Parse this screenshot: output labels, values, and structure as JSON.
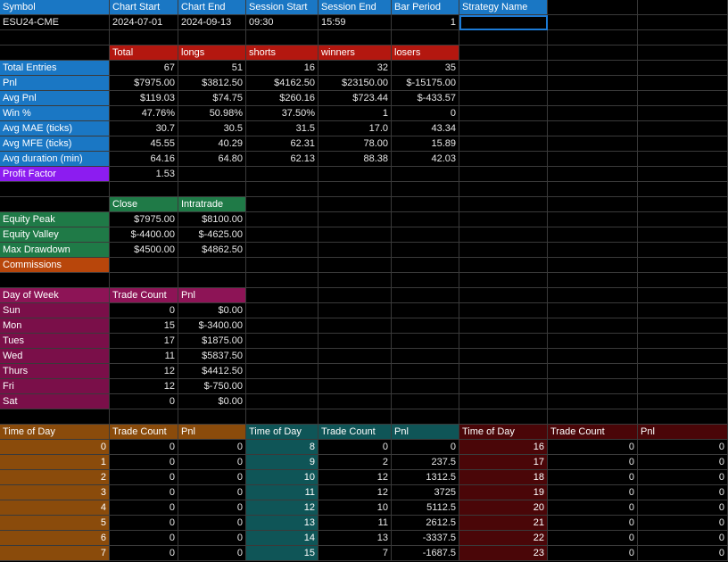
{
  "colors": {
    "blue": "#1a77c4",
    "red": "#b3170f",
    "green": "#1f7a47",
    "purple": "#8c1cf0",
    "orange_commissions": "#b8460b",
    "magenta": "#8d1456",
    "dow_label": "#7a0f49",
    "tod_orange": "#8a4b0b",
    "tod_teal": "#0f5557",
    "tod_maroon": "#4a0608",
    "grid_line": "#3a3a3a"
  },
  "header": {
    "labels": [
      "Symbol",
      "Chart Start",
      "Chart End",
      "Session Start",
      "Session End",
      "Bar Period",
      "Strategy Name"
    ],
    "values": [
      "ESU24-CME",
      "2024-07-01",
      "2024-09-13",
      "09:30",
      "15:59",
      "1",
      ""
    ]
  },
  "stats": {
    "columns": [
      "Total",
      "longs",
      "shorts",
      "winners",
      "losers"
    ],
    "rows": [
      {
        "label": "Total Entries",
        "values": [
          "67",
          "51",
          "16",
          "32",
          "35"
        ]
      },
      {
        "label": "Pnl",
        "values": [
          "$7975.00",
          "$3812.50",
          "$4162.50",
          "$23150.00",
          "$-15175.00"
        ]
      },
      {
        "label": "Avg Pnl",
        "values": [
          "$119.03",
          "$74.75",
          "$260.16",
          "$723.44",
          "$-433.57"
        ]
      },
      {
        "label": "Win %",
        "values": [
          "47.76%",
          "50.98%",
          "37.50%",
          "1",
          "0"
        ]
      },
      {
        "label": "Avg MAE (ticks)",
        "values": [
          "30.7",
          "30.5",
          "31.5",
          "17.0",
          "43.34"
        ]
      },
      {
        "label": "Avg MFE (ticks)",
        "values": [
          "45.55",
          "40.29",
          "62.31",
          "78.00",
          "15.89"
        ]
      },
      {
        "label": "Avg duration (min)",
        "values": [
          "64.16",
          "64.80",
          "62.13",
          "88.38",
          "42.03"
        ]
      }
    ],
    "profit_factor": {
      "label": "Profit Factor",
      "value": "1.53"
    }
  },
  "equity": {
    "columns": [
      "Close",
      "Intratrade"
    ],
    "rows": [
      {
        "label": "Equity Peak",
        "values": [
          "$7975.00",
          "$8100.00"
        ]
      },
      {
        "label": "Equity Valley",
        "values": [
          "$-4400.00",
          "$-4625.00"
        ]
      },
      {
        "label": "Max Drawdown",
        "values": [
          "$4500.00",
          "$4862.50"
        ]
      }
    ],
    "commissions_label": "Commissions"
  },
  "dow": {
    "header": [
      "Day of Week",
      "Trade Count",
      "Pnl"
    ],
    "rows": [
      {
        "day": "Sun",
        "count": "0",
        "pnl": "$0.00"
      },
      {
        "day": "Mon",
        "count": "15",
        "pnl": "$-3400.00"
      },
      {
        "day": "Tues",
        "count": "17",
        "pnl": "$1875.00"
      },
      {
        "day": "Wed",
        "count": "11",
        "pnl": "$5837.50"
      },
      {
        "day": "Thurs",
        "count": "12",
        "pnl": "$4412.50"
      },
      {
        "day": "Fri",
        "count": "12",
        "pnl": "$-750.00"
      },
      {
        "day": "Sat",
        "count": "0",
        "pnl": "$0.00"
      }
    ]
  },
  "tod": {
    "header": [
      "Time of Day",
      "Trade Count",
      "Pnl"
    ],
    "blocks": [
      {
        "rows": [
          [
            "0",
            "0",
            "0"
          ],
          [
            "1",
            "0",
            "0"
          ],
          [
            "2",
            "0",
            "0"
          ],
          [
            "3",
            "0",
            "0"
          ],
          [
            "4",
            "0",
            "0"
          ],
          [
            "5",
            "0",
            "0"
          ],
          [
            "6",
            "0",
            "0"
          ],
          [
            "7",
            "0",
            "0"
          ]
        ]
      },
      {
        "rows": [
          [
            "8",
            "0",
            "0"
          ],
          [
            "9",
            "2",
            "237.5"
          ],
          [
            "10",
            "12",
            "1312.5"
          ],
          [
            "11",
            "12",
            "3725"
          ],
          [
            "12",
            "10",
            "5112.5"
          ],
          [
            "13",
            "11",
            "2612.5"
          ],
          [
            "14",
            "13",
            "-3337.5"
          ],
          [
            "15",
            "7",
            "-1687.5"
          ]
        ]
      },
      {
        "rows": [
          [
            "16",
            "0",
            "0"
          ],
          [
            "17",
            "0",
            "0"
          ],
          [
            "18",
            "0",
            "0"
          ],
          [
            "19",
            "0",
            "0"
          ],
          [
            "20",
            "0",
            "0"
          ],
          [
            "21",
            "0",
            "0"
          ],
          [
            "22",
            "0",
            "0"
          ],
          [
            "23",
            "0",
            "0"
          ]
        ]
      }
    ]
  }
}
